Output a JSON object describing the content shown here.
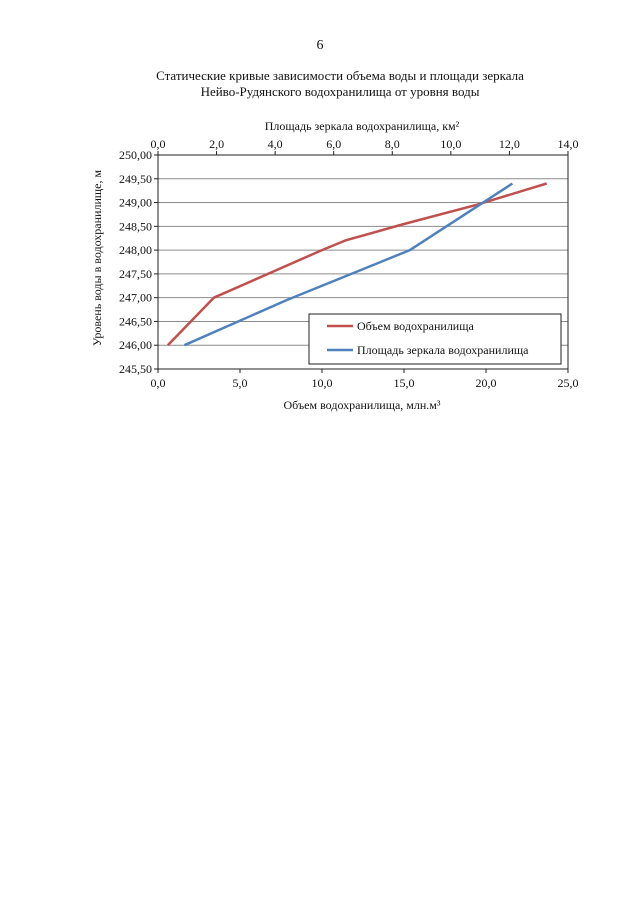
{
  "page": {
    "number": "6"
  },
  "chart_data": {
    "type": "line",
    "title_lines": [
      "Статические кривые зависимости объема воды и площади зеркала",
      "Нейво-Рудянского водохранилища от уровня воды"
    ],
    "xlabel_bottom": "Объем водохранилища, млн.м³",
    "xlabel_top": "Площадь зеркала водохранилища, км²",
    "ylabel": "Уровень воды в водохранилище, м",
    "xlim_bottom": [
      0,
      25
    ],
    "xlim_top": [
      0,
      14
    ],
    "ylim": [
      245.5,
      250.0
    ],
    "xticks_bottom": [
      "0,0",
      "5,0",
      "10,0",
      "15,0",
      "20,0",
      "25,0"
    ],
    "xticks_top": [
      "0,0",
      "2,0",
      "4,0",
      "6,0",
      "8,0",
      "10,0",
      "12,0",
      "14,0"
    ],
    "yticks": [
      "250,00",
      "249,50",
      "249,00",
      "248,50",
      "248,00",
      "247,50",
      "247,00",
      "246,50",
      "246,00",
      "245,50"
    ],
    "grid": "horizontal",
    "legend_position": "bottom-right",
    "series": [
      {
        "name": "Объем водохранилища",
        "axis": "bottom",
        "color": "#c0504d",
        "x": [
          0.6,
          3.4,
          10.0,
          11.4,
          15.0,
          19.4,
          23.7
        ],
        "y": [
          246.0,
          247.0,
          248.0,
          248.2,
          248.55,
          248.95,
          249.4
        ]
      },
      {
        "name": "Площадь зеркала водохранилища",
        "axis": "top",
        "color": "#4f81bd",
        "x": [
          0.9,
          4.4,
          8.6,
          12.1
        ],
        "y": [
          246.0,
          246.95,
          248.0,
          249.4
        ]
      }
    ]
  }
}
